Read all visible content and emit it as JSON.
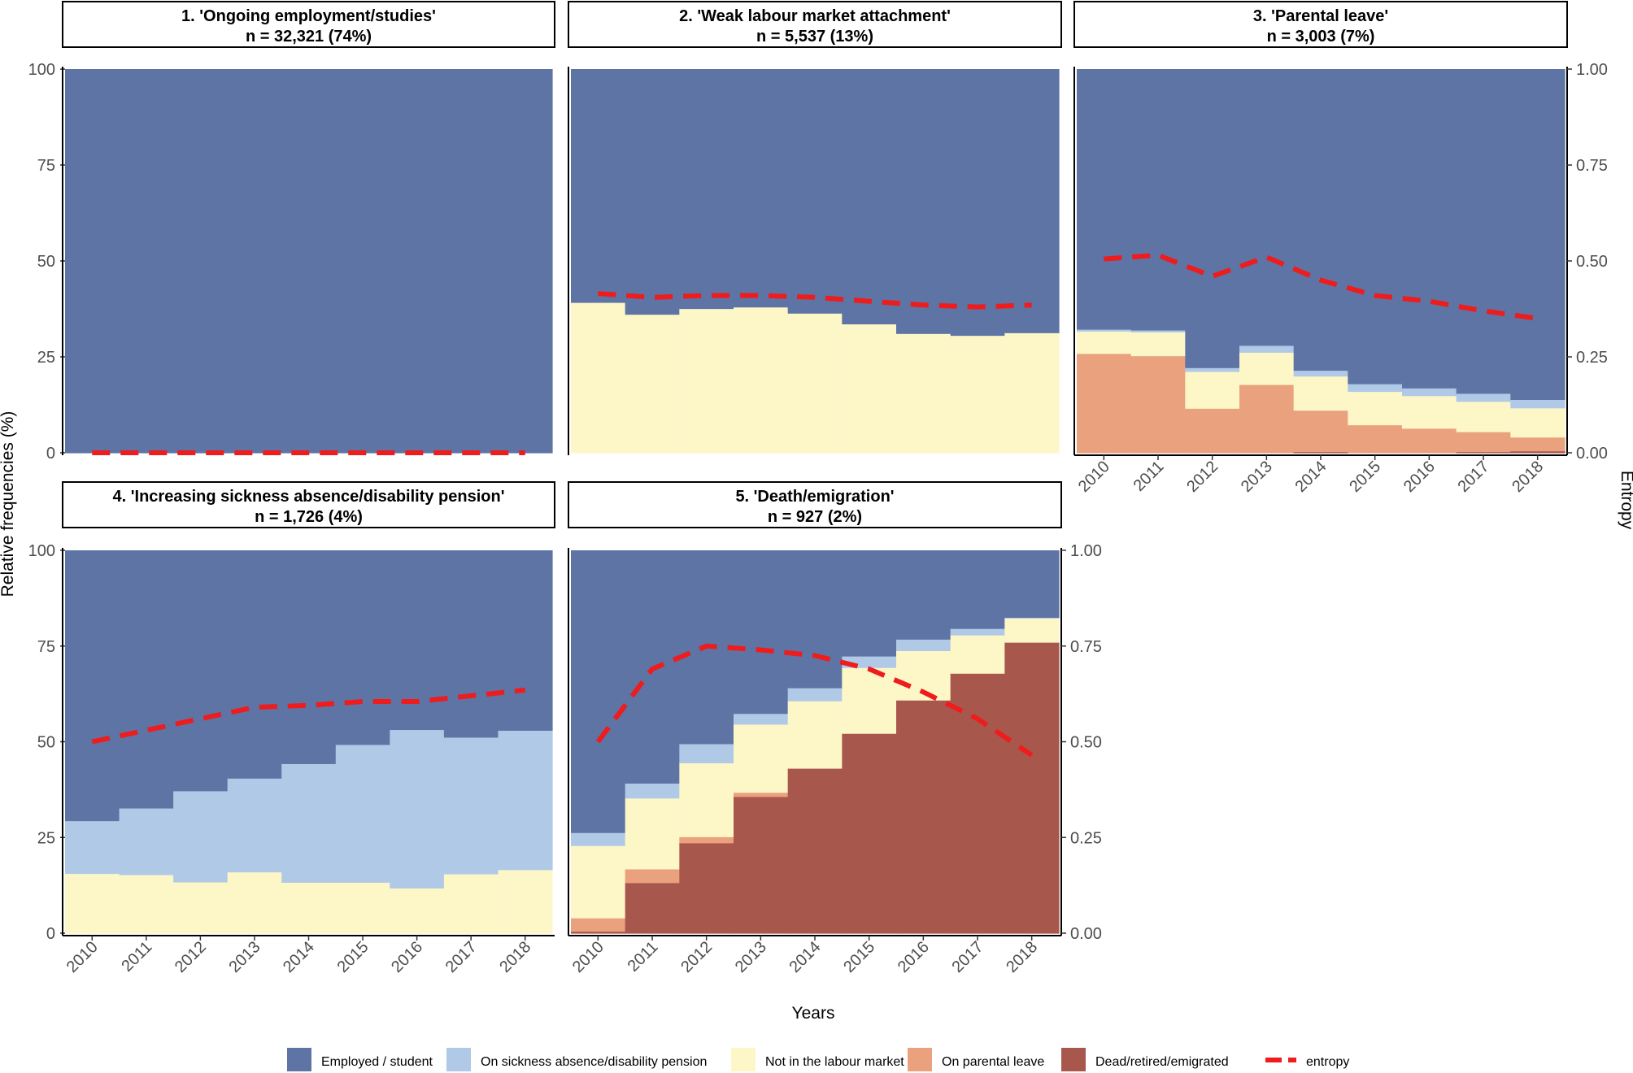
{
  "chart_data": {
    "type": "area",
    "figure_title": "",
    "xlabel": "Years",
    "ylabel": "Relative frequencies (%)",
    "y2label": "Entropy",
    "x": [
      2010,
      2011,
      2012,
      2013,
      2014,
      2015,
      2016,
      2017,
      2018
    ],
    "x_tick_labels": [
      "2010",
      "2011",
      "2012",
      "2013",
      "2014",
      "2015",
      "2016",
      "2017",
      "2018"
    ],
    "ylim": [
      0,
      100
    ],
    "y_ticks": [
      0,
      25,
      50,
      75,
      100
    ],
    "y_tick_labels": [
      "0",
      "25",
      "50",
      "75",
      "100"
    ],
    "y2lim": [
      0,
      1
    ],
    "y2_ticks": [
      0,
      0.25,
      0.5,
      0.75,
      1
    ],
    "y2_tick_labels": [
      "0.00",
      "0.25",
      "0.50",
      "0.75",
      "1.00"
    ],
    "states": [
      {
        "key": "employed",
        "label": "Employed / student",
        "color": "#5e74a4"
      },
      {
        "key": "sickness",
        "label": "On sickness absence/disability pension",
        "color": "#afc9e6"
      },
      {
        "key": "not_lm",
        "label": "Not in the labour market",
        "color": "#fdf7c8"
      },
      {
        "key": "parental",
        "label": "On parental leave",
        "color": "#e9a17e"
      },
      {
        "key": "dead",
        "label": "Dead/retired/emigrated",
        "color": "#a8574d"
      }
    ],
    "entropy_legend": {
      "label": "entropy",
      "color": "#ee1c1c"
    },
    "panels": [
      {
        "title": "1. 'Ongoing employment/studies'",
        "subtitle": "n = 32,321 (74%)",
        "stacked_from_bottom": {
          "dead": [
            0,
            0,
            0,
            0,
            0,
            0,
            0,
            0,
            0
          ],
          "parental": [
            0,
            0,
            0,
            0,
            0,
            0,
            0,
            0,
            0
          ],
          "not_lm": [
            0,
            0,
            0,
            0,
            0,
            0,
            0,
            0,
            0
          ],
          "sickness": [
            0,
            0,
            0,
            0,
            0,
            0,
            0,
            0,
            0
          ],
          "employed": [
            100,
            100,
            100,
            100,
            100,
            100,
            100,
            100,
            100
          ]
        },
        "entropy": [
          0,
          0,
          0,
          0,
          0,
          0,
          0,
          0,
          0
        ]
      },
      {
        "title": "2. 'Weak labour market attachment'",
        "subtitle": "n = 5,537 (13%)",
        "stacked_from_bottom": {
          "dead": [
            0,
            0,
            0,
            0,
            0,
            0,
            0,
            0,
            0
          ],
          "parental": [
            0,
            0,
            0,
            0,
            0,
            0,
            0,
            0,
            0
          ],
          "not_lm": [
            39.2,
            36.1,
            37.6,
            38.0,
            36.4,
            33.6,
            31.1,
            30.6,
            31.3
          ],
          "sickness": [
            0,
            0,
            0,
            0,
            0,
            0,
            0,
            0,
            0
          ],
          "employed": [
            60.8,
            63.9,
            62.4,
            62.0,
            63.6,
            66.4,
            68.9,
            69.4,
            68.7
          ]
        },
        "entropy": [
          0.415,
          0.405,
          0.41,
          0.41,
          0.405,
          0.395,
          0.385,
          0.38,
          0.385
        ]
      },
      {
        "title": "3. 'Parental leave'",
        "subtitle": "n = 3,003 (7%)",
        "stacked_from_bottom": {
          "dead": [
            0,
            0,
            0,
            0,
            0.3,
            0,
            0,
            0.3,
            0.5
          ],
          "parental": [
            25.9,
            25.3,
            11.6,
            17.8,
            10.8,
            7.3,
            6.4,
            5.2,
            3.6
          ],
          "not_lm": [
            5.8,
            6.2,
            9.6,
            8.4,
            8.9,
            8.7,
            8.5,
            7.9,
            7.6
          ],
          "sickness": [
            0.5,
            0.5,
            1.0,
            1.8,
            1.5,
            2.0,
            2.0,
            2.1,
            2.2
          ],
          "employed": [
            67.8,
            68.0,
            77.8,
            72.0,
            78.5,
            82.0,
            83.1,
            84.5,
            86.1
          ]
        },
        "entropy": [
          0.505,
          0.515,
          0.46,
          0.51,
          0.45,
          0.41,
          0.395,
          0.37,
          0.35
        ]
      },
      {
        "title": "4. 'Increasing sickness absence/disability pension'",
        "subtitle": "n = 1,726 (4%)",
        "stacked_from_bottom": {
          "dead": [
            0,
            0,
            0,
            0,
            0,
            0,
            0,
            0,
            0
          ],
          "parental": [
            0,
            0,
            0,
            0,
            0,
            0,
            0,
            0,
            0
          ],
          "not_lm": [
            15.6,
            15.3,
            13.4,
            16.0,
            13.3,
            13.3,
            11.8,
            15.5,
            16.6
          ],
          "sickness": [
            13.8,
            17.4,
            23.8,
            24.5,
            31.0,
            36.0,
            41.4,
            35.7,
            36.4
          ],
          "employed": [
            70.6,
            67.3,
            62.8,
            59.5,
            55.7,
            50.7,
            46.8,
            48.8,
            47.0
          ]
        },
        "entropy": [
          0.5,
          0.53,
          0.56,
          0.59,
          0.595,
          0.605,
          0.605,
          0.62,
          0.635
        ]
      },
      {
        "title": "5. 'Death/emigration'",
        "subtitle": "n = 927 (2%)",
        "stacked_from_bottom": {
          "dead": [
            0.5,
            13.2,
            23.6,
            35.7,
            43.1,
            52.2,
            60.9,
            67.9,
            76.0
          ],
          "parental": [
            3.5,
            3.6,
            1.6,
            1.1,
            0,
            0,
            0,
            0,
            0
          ],
          "not_lm": [
            18.9,
            18.5,
            19.3,
            17.8,
            17.6,
            17.2,
            12.9,
            10.0,
            6.3
          ],
          "sickness": [
            3.4,
            3.9,
            5.0,
            2.8,
            3.4,
            3.0,
            3.0,
            1.7,
            0.2
          ],
          "employed": [
            73.7,
            60.8,
            50.5,
            42.6,
            35.9,
            27.6,
            23.2,
            20.4,
            17.5
          ]
        },
        "entropy": [
          0.5,
          0.69,
          0.75,
          0.74,
          0.725,
          0.69,
          0.63,
          0.56,
          0.465
        ]
      }
    ]
  }
}
